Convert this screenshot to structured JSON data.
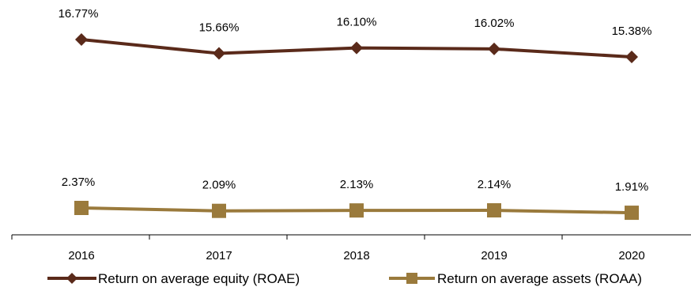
{
  "chart_data": {
    "type": "line",
    "categories": [
      "2016",
      "2017",
      "2018",
      "2019",
      "2020"
    ],
    "series": [
      {
        "name": "Return on average equity (ROAE)",
        "values": [
          16.77,
          15.66,
          16.1,
          16.02,
          15.38
        ],
        "labels": [
          "16.77%",
          "15.66%",
          "16.10%",
          "16.02%",
          "15.38%"
        ],
        "color": "#5a2a1a",
        "marker": "diamond"
      },
      {
        "name": "Return on average assets (ROAA)",
        "values": [
          2.37,
          2.09,
          2.13,
          2.14,
          1.91
        ],
        "labels": [
          "2.37%",
          "2.09%",
          "2.13%",
          "2.14%",
          "1.91%"
        ],
        "color": "#9a7a3c",
        "marker": "square"
      }
    ],
    "legend_position": "bottom",
    "grid": false
  }
}
